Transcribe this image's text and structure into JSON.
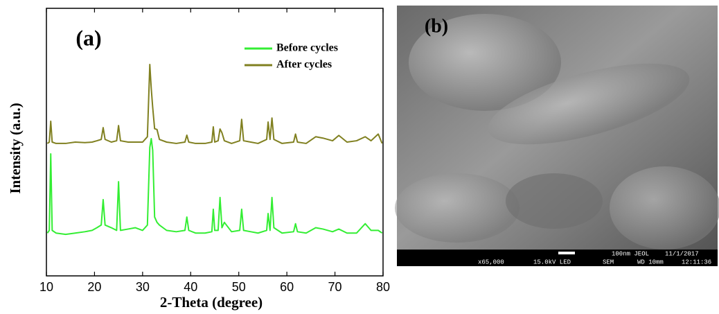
{
  "chart_data": {
    "type": "line",
    "panel_label": "(a)",
    "x_label": "2-Theta (degree)",
    "y_label": "Intensity (a.u.)",
    "x": [
      10.2,
      10.6,
      10.9,
      11.2,
      12,
      14,
      16,
      18,
      19.5,
      20.5,
      21.4,
      21.8,
      22.2,
      23.5,
      24.6,
      25.0,
      25.4,
      27,
      28.5,
      30,
      31.0,
      31.5,
      31.8,
      32.1,
      32.5,
      33.0,
      33.5,
      35,
      37,
      38.8,
      39.2,
      39.6,
      41,
      43,
      44.4,
      44.7,
      45.0,
      45.7,
      46.1,
      46.5,
      47,
      48.5,
      50.2,
      50.6,
      51.0,
      52.5,
      54,
      55.8,
      56.1,
      56.5,
      56.9,
      57.3,
      59,
      61.4,
      61.8,
      62.2,
      64,
      66.0,
      67.5,
      69.5,
      70.8,
      72.5,
      74.5,
      76.3,
      77.5,
      79.0,
      79.8
    ],
    "series": [
      {
        "name": "Before cycles",
        "color": "#33ee33",
        "values": [
          16,
          17,
          45.6,
          17,
          16,
          15.5,
          16,
          16.5,
          17,
          18,
          19,
          28.5,
          19,
          18,
          17,
          35.2,
          17,
          17.5,
          18,
          17,
          19,
          48,
          51.3,
          47,
          22,
          20,
          19,
          17,
          16.5,
          17,
          22,
          17,
          16,
          16,
          16.5,
          24.9,
          17,
          17,
          29.3,
          18,
          20,
          16.5,
          17,
          24.9,
          17,
          16.5,
          16,
          17,
          23.3,
          17,
          29.3,
          18,
          16,
          16.5,
          19.5,
          16.5,
          16,
          18,
          17.5,
          16.5,
          17.5,
          16,
          16,
          19.5,
          17,
          17,
          16
        ]
      },
      {
        "name": "After cycles",
        "color": "#808020",
        "values": [
          49.5,
          50,
          57.8,
          50,
          49.5,
          49.5,
          50,
          49.8,
          50,
          50.5,
          51,
          55.4,
          51,
          50,
          50.5,
          56.2,
          50.5,
          50,
          50,
          50,
          52,
          79,
          70,
          63,
          55,
          54.7,
          51,
          50,
          49.5,
          50,
          52.6,
          50,
          49.5,
          49.5,
          50,
          55.7,
          50,
          50.5,
          54.9,
          53.5,
          50.5,
          49.5,
          50.5,
          58.5,
          50.5,
          50,
          49.5,
          51,
          57.5,
          51,
          59,
          51,
          49.5,
          50,
          53,
          50,
          49.5,
          52,
          51.5,
          50.5,
          52.5,
          50,
          50.5,
          52,
          50.5,
          53,
          49.5
        ]
      }
    ],
    "xlim": [
      10,
      80
    ],
    "xticks": [
      10,
      20,
      30,
      40,
      50,
      60,
      70,
      80
    ],
    "ylim": [
      0,
      100
    ],
    "legend": "upper right"
  },
  "image_panel": {
    "panel_label": "(b)",
    "info": [
      "x65,000",
      "15.0kV LED",
      "SEM",
      "WD 10mm",
      "100nm JEOL",
      "11/1/2017",
      "12:11:36"
    ]
  }
}
